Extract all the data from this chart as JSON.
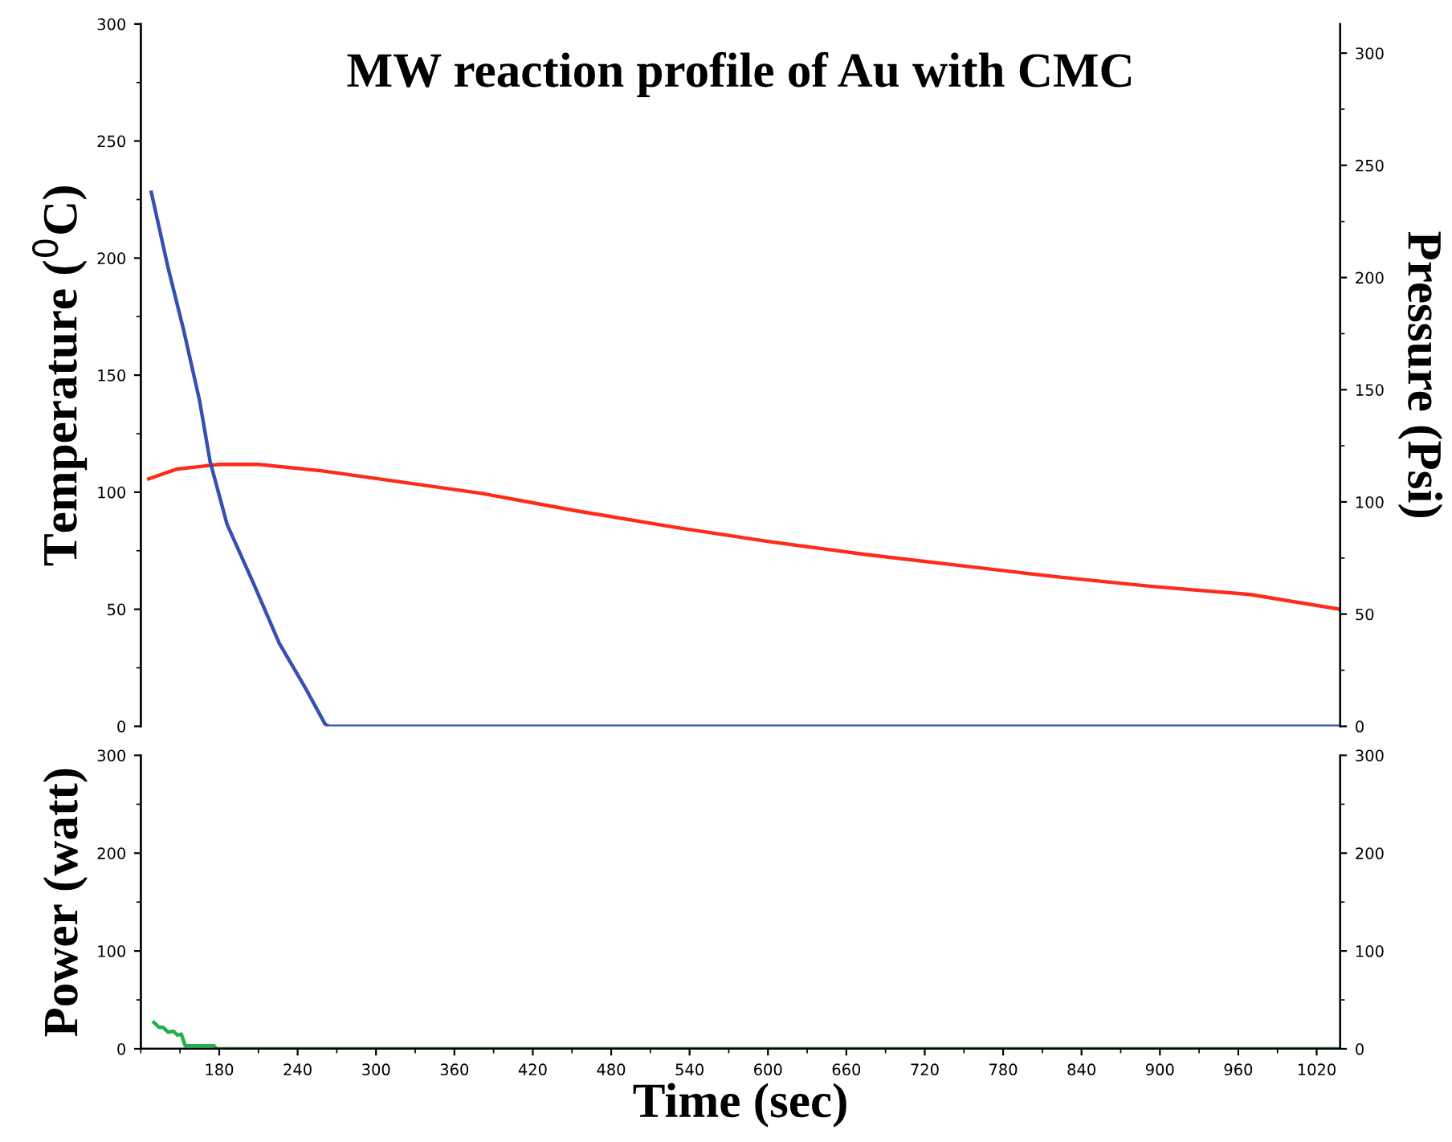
{
  "chart_data": [
    {
      "type": "line",
      "title": "MW reaction profile of Au with CMC",
      "ylabel": "Temperature ($^{0}$C)",
      "y2label": "Pressure (Psi)",
      "xlim": [
        120,
        1038
      ],
      "ylim": [
        0,
        300
      ],
      "yticks": [
        0,
        50,
        100,
        150,
        200,
        250,
        300
      ],
      "y2lim": [
        0,
        313
      ],
      "y2ticks": [
        0,
        50,
        100,
        150,
        200,
        250,
        300
      ],
      "tick_labels": "y",
      "grid": false,
      "legend": false,
      "series": [
        {
          "color": "#ff2a1a",
          "x": [
            126,
            147,
            180,
            210,
            259,
            320,
            381,
            454,
            528,
            601,
            675,
            748,
            822,
            895,
            969,
            1037
          ],
          "values": [
            105.7,
            109.8,
            111.9,
            111.9,
            109.1,
            104.3,
            99.5,
            92.0,
            85.1,
            78.9,
            73.4,
            68.6,
            63.8,
            59.7,
            56.3,
            50.1
          ]
        },
        {
          "color": "#3550b0",
          "axis": "y2",
          "x": [
            128,
            141,
            153,
            165,
            173,
            186,
            206,
            226,
            247,
            261,
            264,
            1037
          ],
          "values": [
            238,
            204,
            176,
            145,
            118,
            90,
            64,
            37,
            16,
            1,
            0,
            0
          ]
        }
      ]
    },
    {
      "type": "line",
      "ylabel": "Power (watt)",
      "xlabel": "Time (sec)",
      "xlim": [
        120,
        1038
      ],
      "xticks": [
        180,
        240,
        300,
        360,
        420,
        480,
        540,
        600,
        660,
        720,
        780,
        840,
        900,
        960,
        1020
      ],
      "ylim": [
        0,
        300
      ],
      "yticks": [
        0,
        100,
        200,
        300
      ],
      "y2lim": [
        0,
        300
      ],
      "y2ticks": [
        0,
        100,
        200,
        300
      ],
      "grid": false,
      "legend": false,
      "series": [
        {
          "color": "#22b04a",
          "x": [
            130,
            134,
            137,
            141,
            145,
            148,
            151,
            154,
            176,
            178,
            1037
          ],
          "values": [
            27,
            22,
            22,
            17,
            18,
            14,
            15,
            3,
            3,
            0,
            0
          ]
        }
      ]
    }
  ]
}
